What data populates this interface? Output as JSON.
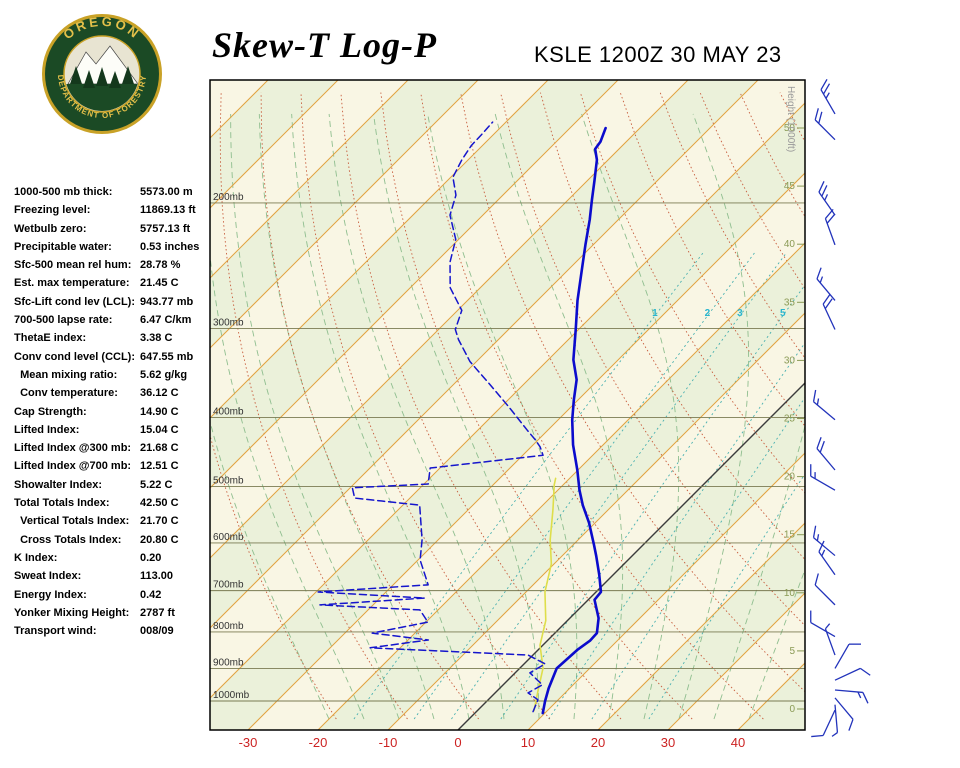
{
  "header": {
    "title": "Skew-T Log-P",
    "station_line": "KSLE 1200Z 30 MAY 23"
  },
  "logo": {
    "top_text": "OREGON",
    "bottom_text": "DEPARTMENT OF FORESTRY"
  },
  "stats": {
    "rows": [
      {
        "label": "1000-500 mb thick:",
        "value": "5573.00 m"
      },
      {
        "label": "Freezing level:",
        "value": "11869.13 ft"
      },
      {
        "label": "Wetbulb zero:",
        "value": "5757.13 ft"
      },
      {
        "label": "Precipitable water:",
        "value": "0.53 inches"
      },
      {
        "label": "Sfc-500 mean rel hum:",
        "value": "28.78 %"
      },
      {
        "label": "Est. max temperature:",
        "value": "21.45 C"
      },
      {
        "label": "Sfc-Lift cond lev (LCL):",
        "value": "943.77 mb"
      },
      {
        "label": "700-500 lapse rate:",
        "value": "6.47 C/km"
      },
      {
        "label": "ThetaE index:",
        "value": "3.38 C"
      },
      {
        "label": "Conv cond level (CCL):",
        "value": "647.55 mb"
      },
      {
        "label": "  Mean mixing ratio:",
        "value": "5.62 g/kg"
      },
      {
        "label": "  Conv temperature:",
        "value": "36.12 C"
      },
      {
        "label": "Cap Strength:",
        "value": "14.90 C"
      },
      {
        "label": "Lifted Index:",
        "value": "15.04 C"
      },
      {
        "label": "Lifted Index @300 mb:",
        "value": "21.68 C"
      },
      {
        "label": "Lifted Index @700 mb:",
        "value": "12.51 C"
      },
      {
        "label": "Showalter Index:",
        "value": "5.22 C"
      },
      {
        "label": "Total Totals Index:",
        "value": "42.50 C"
      },
      {
        "label": "  Vertical Totals Index:",
        "value": "21.70 C"
      },
      {
        "label": "  Cross Totals Index:",
        "value": "20.80 C"
      },
      {
        "label": "K Index:",
        "value": "0.20"
      },
      {
        "label": "Sweat Index:",
        "value": "113.00"
      },
      {
        "label": "Energy Index:",
        "value": "0.42"
      },
      {
        "label": "Yonker Mixing Height:",
        "value": "2787 ft"
      },
      {
        "label": "Transport wind:",
        "value": "008/09"
      }
    ]
  },
  "chart_data": {
    "type": "skewt_sounding",
    "title": "Skew-T Log-P",
    "station_line": "KSLE 1200Z 30 MAY 23",
    "x_axis_ticks_c": [
      -30,
      -20,
      -10,
      0,
      10,
      20,
      30,
      40
    ],
    "pressure_levels_mb": [
      200,
      300,
      400,
      500,
      600,
      700,
      800,
      900,
      1000
    ],
    "pressure_unit": "mb",
    "height_ticks_kft": [
      50,
      45,
      40,
      35,
      30,
      25,
      20,
      15,
      10,
      5,
      0
    ],
    "height_axis_label": "Height (1000ft)",
    "mixing_ratio_lines_gkg": [
      1,
      2,
      3,
      5,
      8,
      12,
      20
    ],
    "mixing_ratio_labels_gkg": [
      1,
      2,
      3,
      5
    ],
    "temperature_profile": [
      [
        1040,
        9.7
      ],
      [
        1000,
        8.3
      ],
      [
        960,
        7.0
      ],
      [
        900,
        5.3
      ],
      [
        848,
        5.6
      ],
      [
        823,
        6.1
      ],
      [
        803,
        6.0
      ],
      [
        765,
        4.1
      ],
      [
        721,
        0.9
      ],
      [
        703,
        0.7
      ],
      [
        665,
        -2.0
      ],
      [
        626,
        -5.1
      ],
      [
        604,
        -7.0
      ],
      [
        562,
        -10.9
      ],
      [
        531,
        -14.3
      ],
      [
        506,
        -16.9
      ],
      [
        474,
        -20.1
      ],
      [
        437,
        -24.3
      ],
      [
        403,
        -28.0
      ],
      [
        378,
        -30.6
      ],
      [
        354,
        -33.1
      ],
      [
        332,
        -36.4
      ],
      [
        301,
        -40.4
      ],
      [
        274,
        -44.3
      ],
      [
        244,
        -48.7
      ],
      [
        229,
        -51.1
      ],
      [
        211,
        -54.1
      ],
      [
        198,
        -56.6
      ],
      [
        186,
        -59.0
      ],
      [
        174,
        -61.6
      ],
      [
        168,
        -63.4
      ],
      [
        164,
        -63.7
      ],
      [
        157,
        -64.9
      ]
    ],
    "dewpoint_profile": [
      [
        1035,
        8.1
      ],
      [
        996,
        7.1
      ],
      [
        974,
        4.7
      ],
      [
        949,
        5.6
      ],
      [
        913,
        2.1
      ],
      [
        887,
        3.0
      ],
      [
        862,
        -0.7
      ],
      [
        842,
        -24.3
      ],
      [
        821,
        -17.1
      ],
      [
        803,
        -26.1
      ],
      [
        775,
        -19.7
      ],
      [
        745,
        -22.6
      ],
      [
        733,
        -37.6
      ],
      [
        717,
        -23.6
      ],
      [
        703,
        -39.7
      ],
      [
        687,
        -25.0
      ],
      [
        634,
        -29.7
      ],
      [
        594,
        -32.3
      ],
      [
        531,
        -37.6
      ],
      [
        519,
        -47.9
      ],
      [
        502,
        -49.7
      ],
      [
        496,
        -39.4
      ],
      [
        471,
        -41.4
      ],
      [
        452,
        -27.1
      ],
      [
        440,
        -28.7
      ],
      [
        430,
        -30.4
      ],
      [
        417,
        -32.9
      ],
      [
        388,
        -38.6
      ],
      [
        360,
        -44.7
      ],
      [
        334,
        -50.9
      ],
      [
        311,
        -55.7
      ],
      [
        301,
        -57.6
      ],
      [
        283,
        -59.4
      ],
      [
        263,
        -64.3
      ],
      [
        242,
        -68.0
      ],
      [
        225,
        -70.4
      ],
      [
        208,
        -74.7
      ],
      [
        195,
        -76.7
      ],
      [
        184,
        -79.7
      ],
      [
        174,
        -80.9
      ],
      [
        166,
        -81.6
      ],
      [
        160,
        -81.7
      ],
      [
        154,
        -81.9
      ]
    ],
    "wetbulb_profile": [
      [
        1032,
        8.1
      ],
      [
        964,
        5.7
      ],
      [
        899,
        3.3
      ],
      [
        835,
        -0.4
      ],
      [
        771,
        -3.1
      ],
      [
        703,
        -7.3
      ],
      [
        642,
        -10.4
      ],
      [
        594,
        -14.0
      ],
      [
        539,
        -17.9
      ],
      [
        497,
        -21.3
      ],
      [
        487,
        -22.0
      ]
    ],
    "wind_barbs": [
      [
        150,
        330,
        25
      ],
      [
        163,
        315,
        20
      ],
      [
        208,
        325,
        25
      ],
      [
        229,
        340,
        20
      ],
      [
        274,
        320,
        15
      ],
      [
        301,
        335,
        20
      ],
      [
        403,
        310,
        15
      ],
      [
        474,
        320,
        20
      ],
      [
        506,
        300,
        15
      ],
      [
        625,
        310,
        15
      ],
      [
        665,
        325,
        15
      ],
      [
        733,
        315,
        10
      ],
      [
        812,
        300,
        10
      ],
      [
        862,
        340,
        5
      ],
      [
        900,
        30,
        10
      ],
      [
        935,
        65,
        10
      ],
      [
        965,
        95,
        15
      ],
      [
        990,
        140,
        10
      ],
      [
        1012,
        175,
        5
      ],
      [
        1030,
        205,
        10
      ]
    ],
    "colors": {
      "background_cream": "#f9f6e4",
      "background_band": "#ebf1da",
      "isotherm": "#e2a23f",
      "zero_isotherm": "#3c3c3c",
      "dry_adiabat": "#c75c3c",
      "moist_adiabat": "#8fbe8f",
      "mixing_ratio": "#49b0b0",
      "pressure_line": "#7a7a52",
      "temperature_trace": "#0b0bcc",
      "dewpoint_trace": "#1515cc",
      "wetbulb_trace": "#dede4a",
      "wind_barb": "#2233bb",
      "height_labels": "#8a9a55",
      "axis_labels_red": "#cc2222"
    }
  }
}
